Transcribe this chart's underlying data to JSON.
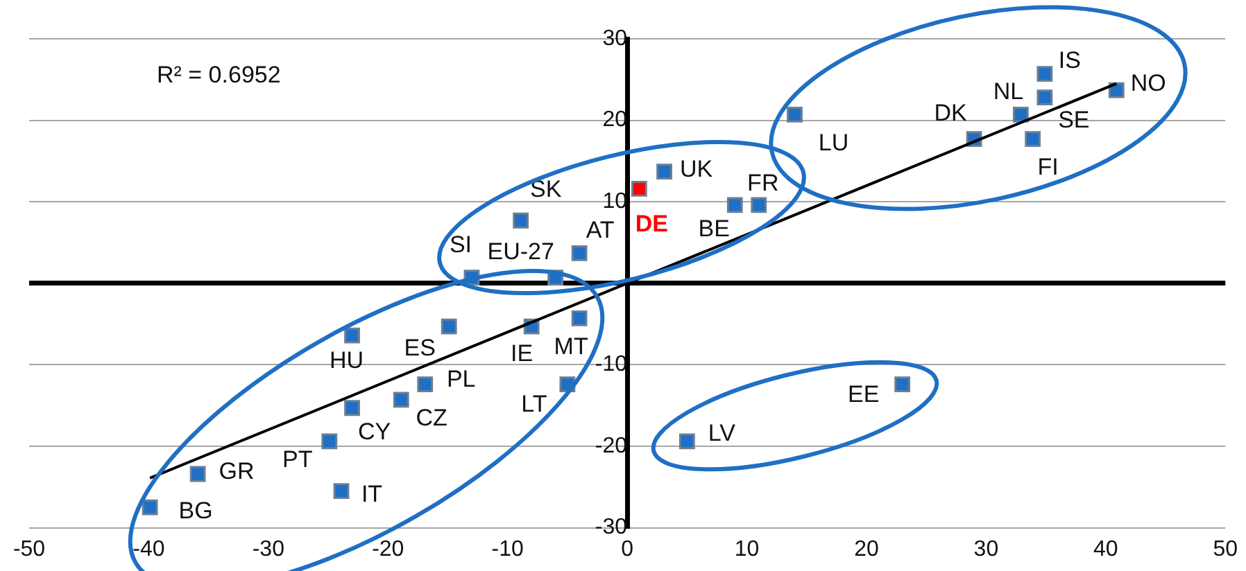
{
  "chart_data": {
    "type": "scatter",
    "xlim": [
      -50,
      50
    ],
    "xticks": [
      -50,
      -40,
      -30,
      -20,
      -10,
      0,
      10,
      20,
      30,
      40,
      50
    ],
    "ylim": [
      -30,
      30
    ],
    "yticks": [
      -30,
      -20,
      -10,
      {
        "value": 0,
        "label": null
      },
      10,
      20,
      30
    ],
    "grid": "y",
    "legend": false,
    "marker": "square",
    "annotations": [
      "R² = 0.6952"
    ],
    "series": [
      {
        "color": "#1f6fc4",
        "x": [
          40.9,
          34.9,
          32.9,
          34.9,
          33.9,
          29.0,
          14.0,
          3.1,
          9.0,
          11.0,
          -8.9,
          -4.0,
          -13.0,
          -6.0,
          -4.0,
          -8.0,
          -14.9,
          -23.0,
          -16.9,
          -5.0,
          -18.9,
          -23.0,
          -24.9,
          -23.9,
          -35.9,
          -39.9,
          23.0,
          5.0
        ],
        "values": [
          23.7,
          25.7,
          20.7,
          22.8,
          17.7,
          17.7,
          20.7,
          13.7,
          9.6,
          9.6,
          7.7,
          3.7,
          0.7,
          0.7,
          -4.3,
          -5.3,
          -5.3,
          -6.4,
          -12.4,
          -12.4,
          -14.3,
          -15.3,
          -19.4,
          -25.5,
          -23.4,
          -27.5,
          -12.4,
          -19.4
        ],
        "value_labels": [
          "NO",
          "IS",
          "NL",
          "SE",
          "FI",
          "DK",
          "LU",
          "UK",
          "BE",
          "FR",
          "SK",
          "AT",
          "SI",
          "EU-27",
          "MT",
          "IE",
          "ES",
          "HU",
          "PL",
          "LT",
          "CZ",
          "CY",
          "PT",
          "IT",
          "GR",
          "BG",
          "EE",
          "LV"
        ]
      },
      {
        "color": "#ff0000",
        "x": [
          1.0
        ],
        "values": [
          11.6
        ],
        "value_labels": [
          "DE"
        ]
      },
      {
        "type": "line",
        "color": "#000000",
        "marker": "none",
        "x": [
          -39.9,
          40.9
        ],
        "values": [
          -23.9,
          24.5
        ]
      }
    ]
  }
}
